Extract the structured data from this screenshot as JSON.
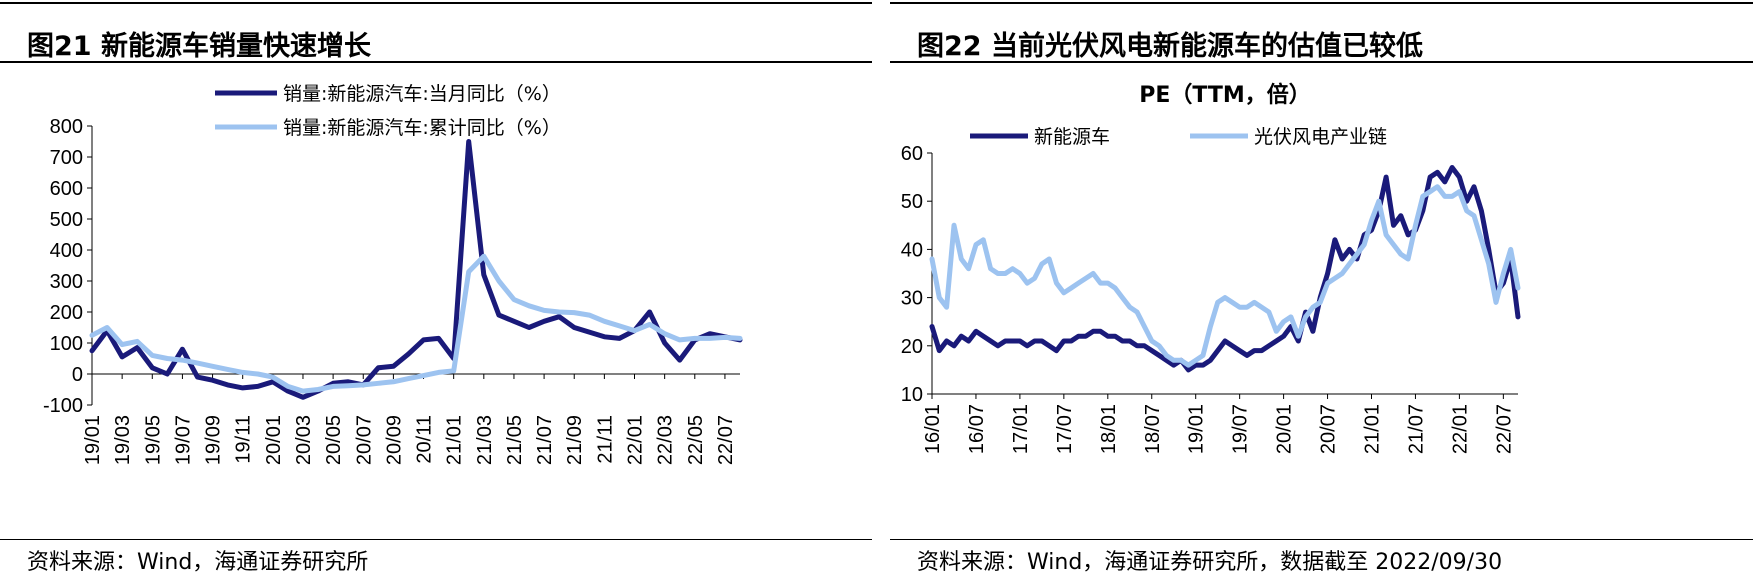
{
  "left": {
    "title": "图21 新能源车销量快速增长",
    "source": "资料来源：Wind，海通证券研究所",
    "chart_data": {
      "type": "line",
      "title": "",
      "ylim": [
        -100,
        800
      ],
      "yticks": [
        -100,
        0,
        100,
        200,
        300,
        400,
        500,
        600,
        700,
        800
      ],
      "xticks": [
        "19/01",
        "19/03",
        "19/05",
        "19/07",
        "19/09",
        "19/11",
        "20/01",
        "20/03",
        "20/05",
        "20/07",
        "20/09",
        "20/11",
        "21/01",
        "21/03",
        "21/05",
        "21/07",
        "21/09",
        "21/11",
        "22/01",
        "22/03",
        "22/05",
        "22/07"
      ],
      "x": [
        "19/01",
        "19/02",
        "19/03",
        "19/04",
        "19/05",
        "19/06",
        "19/07",
        "19/08",
        "19/09",
        "19/10",
        "19/11",
        "19/12",
        "20/01",
        "20/02",
        "20/03",
        "20/04",
        "20/05",
        "20/06",
        "20/07",
        "20/08",
        "20/09",
        "20/10",
        "20/11",
        "20/12",
        "21/01",
        "21/02",
        "21/03",
        "21/04",
        "21/05",
        "21/06",
        "21/07",
        "21/08",
        "21/09",
        "21/10",
        "21/11",
        "21/12",
        "22/01",
        "22/02",
        "22/03",
        "22/04",
        "22/05",
        "22/06",
        "22/07",
        "22/08"
      ],
      "series": [
        {
          "name": "销量:新能源汽车:当月同比（%）",
          "color": "#1a1a7a",
          "values": [
            75,
            140,
            55,
            85,
            20,
            0,
            80,
            -10,
            -20,
            -35,
            -45,
            -40,
            -25,
            -55,
            -75,
            -55,
            -30,
            -25,
            -35,
            20,
            25,
            65,
            110,
            115,
            50,
            750,
            320,
            190,
            170,
            150,
            170,
            185,
            150,
            135,
            120,
            115,
            140,
            200,
            100,
            45,
            110,
            130,
            120,
            110
          ]
        },
        {
          "name": "销量:新能源汽车:累计同比（%）",
          "color": "#9dc3f0",
          "values": [
            125,
            150,
            95,
            105,
            60,
            50,
            45,
            35,
            25,
            15,
            5,
            0,
            -10,
            -40,
            -55,
            -50,
            -40,
            -38,
            -35,
            -30,
            -25,
            -15,
            -5,
            5,
            10,
            330,
            380,
            300,
            240,
            220,
            205,
            200,
            198,
            190,
            170,
            155,
            140,
            160,
            130,
            110,
            115,
            115,
            118,
            115
          ]
        }
      ]
    }
  },
  "right": {
    "title": "图22 当前光伏风电新能源车的估值已较低",
    "source": "资料来源：Wind，海通证券研究所，数据截至 2022/09/30",
    "chart_data": {
      "type": "line",
      "title": "PE（TTM，倍）",
      "ylim": [
        10,
        60
      ],
      "yticks": [
        10,
        20,
        30,
        40,
        50,
        60
      ],
      "xticks": [
        "16/01",
        "16/07",
        "17/01",
        "17/07",
        "18/01",
        "18/07",
        "19/01",
        "19/07",
        "20/01",
        "20/07",
        "21/01",
        "21/07",
        "22/01",
        "22/07"
      ],
      "x": [
        "16/01",
        "16/02",
        "16/03",
        "16/04",
        "16/05",
        "16/06",
        "16/07",
        "16/08",
        "16/09",
        "16/10",
        "16/11",
        "16/12",
        "17/01",
        "17/02",
        "17/03",
        "17/04",
        "17/05",
        "17/06",
        "17/07",
        "17/08",
        "17/09",
        "17/10",
        "17/11",
        "17/12",
        "18/01",
        "18/02",
        "18/03",
        "18/04",
        "18/05",
        "18/06",
        "18/07",
        "18/08",
        "18/09",
        "18/10",
        "18/11",
        "18/12",
        "19/01",
        "19/02",
        "19/03",
        "19/04",
        "19/05",
        "19/06",
        "19/07",
        "19/08",
        "19/09",
        "19/10",
        "19/11",
        "19/12",
        "20/01",
        "20/02",
        "20/03",
        "20/04",
        "20/05",
        "20/06",
        "20/07",
        "20/08",
        "20/09",
        "20/10",
        "20/11",
        "20/12",
        "21/01",
        "21/02",
        "21/03",
        "21/04",
        "21/05",
        "21/06",
        "21/07",
        "21/08",
        "21/09",
        "21/10",
        "21/11",
        "21/12",
        "22/01",
        "22/02",
        "22/03",
        "22/04",
        "22/05",
        "22/06",
        "22/07",
        "22/08",
        "22/09"
      ],
      "series": [
        {
          "name": "新能源车",
          "color": "#1a1a7a",
          "values": [
            24,
            19,
            21,
            20,
            22,
            21,
            23,
            22,
            21,
            20,
            21,
            21,
            21,
            20,
            21,
            21,
            20,
            19,
            21,
            21,
            22,
            22,
            23,
            23,
            22,
            22,
            21,
            21,
            20,
            20,
            19,
            18,
            17,
            16,
            17,
            15,
            16,
            16,
            17,
            19,
            21,
            20,
            19,
            18,
            19,
            19,
            20,
            21,
            22,
            24,
            21,
            27,
            23,
            30,
            35,
            42,
            38,
            40,
            38,
            43,
            44,
            48,
            55,
            45,
            47,
            43,
            44,
            48,
            55,
            56,
            54,
            57,
            55,
            50,
            53,
            48,
            40,
            31,
            33,
            38,
            26
          ]
        },
        {
          "name": "光伏风电产业链",
          "color": "#9dc3f0",
          "values": [
            38,
            30,
            28,
            45,
            38,
            36,
            41,
            42,
            36,
            35,
            35,
            36,
            35,
            33,
            34,
            37,
            38,
            33,
            31,
            32,
            33,
            34,
            35,
            33,
            33,
            32,
            30,
            28,
            27,
            24,
            21,
            20,
            18,
            17,
            17,
            16,
            17,
            18,
            24,
            29,
            30,
            29,
            28,
            28,
            29,
            28,
            27,
            23,
            25,
            26,
            22,
            26,
            28,
            29,
            33,
            34,
            35,
            37,
            39,
            41,
            46,
            50,
            43,
            41,
            39,
            38,
            45,
            51,
            52,
            53,
            51,
            51,
            52,
            48,
            47,
            42,
            37,
            29,
            35,
            40,
            32
          ]
        }
      ]
    }
  }
}
